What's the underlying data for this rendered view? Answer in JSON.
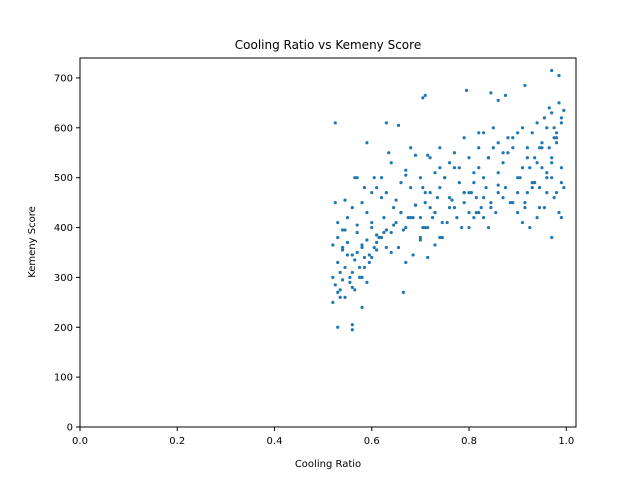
{
  "chart_data": {
    "type": "scatter",
    "title": "Cooling Ratio vs Kemeny Score",
    "xlabel": "Cooling Ratio",
    "ylabel": "Kemeny Score",
    "xlim": [
      0.0,
      1.02
    ],
    "ylim": [
      0,
      740
    ],
    "xticks": [
      0.0,
      0.2,
      0.4,
      0.6,
      0.8,
      1.0
    ],
    "xtick_labels": [
      "0.0",
      "0.2",
      "0.4",
      "0.6",
      "0.8",
      "1.0"
    ],
    "yticks": [
      0,
      100,
      200,
      300,
      400,
      500,
      600,
      700
    ],
    "ytick_labels": [
      "0",
      "100",
      "200",
      "300",
      "400",
      "500",
      "600",
      "700"
    ],
    "grid": false,
    "legend": "none",
    "marker_color": "#1f77b4",
    "series": [
      {
        "x": [
          0.52,
          0.525,
          0.53,
          0.53,
          0.535,
          0.54,
          0.54,
          0.545,
          0.55,
          0.555,
          0.56,
          0.56,
          0.565,
          0.57,
          0.575,
          0.58,
          0.58,
          0.585,
          0.59,
          0.595,
          0.52,
          0.53,
          0.54,
          0.55,
          0.56,
          0.57,
          0.58,
          0.59,
          0.6,
          0.61,
          0.52,
          0.535,
          0.545,
          0.555,
          0.565,
          0.575,
          0.585,
          0.595,
          0.605,
          0.615,
          0.53,
          0.54,
          0.55,
          0.56,
          0.57,
          0.58,
          0.59,
          0.6,
          0.61,
          0.62,
          0.525,
          0.545,
          0.565,
          0.585,
          0.605,
          0.625,
          0.645,
          0.665,
          0.685,
          0.705,
          0.6,
          0.61,
          0.62,
          0.63,
          0.64,
          0.65,
          0.66,
          0.67,
          0.68,
          0.69,
          0.6,
          0.615,
          0.63,
          0.645,
          0.66,
          0.675,
          0.69,
          0.705,
          0.72,
          0.735,
          0.62,
          0.63,
          0.64,
          0.65,
          0.66,
          0.67,
          0.68,
          0.69,
          0.7,
          0.71,
          0.61,
          0.625,
          0.64,
          0.655,
          0.67,
          0.685,
          0.7,
          0.715,
          0.73,
          0.745,
          0.7,
          0.71,
          0.72,
          0.73,
          0.74,
          0.75,
          0.76,
          0.77,
          0.78,
          0.79,
          0.7,
          0.715,
          0.73,
          0.745,
          0.76,
          0.775,
          0.79,
          0.805,
          0.82,
          0.835,
          0.72,
          0.73,
          0.74,
          0.75,
          0.76,
          0.77,
          0.78,
          0.79,
          0.8,
          0.81,
          0.71,
          0.725,
          0.74,
          0.755,
          0.77,
          0.785,
          0.8,
          0.815,
          0.83,
          0.845,
          0.8,
          0.81,
          0.82,
          0.83,
          0.84,
          0.85,
          0.86,
          0.87,
          0.88,
          0.89,
          0.8,
          0.815,
          0.83,
          0.845,
          0.86,
          0.875,
          0.89,
          0.905,
          0.92,
          0.935,
          0.82,
          0.83,
          0.84,
          0.85,
          0.86,
          0.87,
          0.88,
          0.89,
          0.9,
          0.91,
          0.81,
          0.825,
          0.84,
          0.855,
          0.87,
          0.885,
          0.9,
          0.915,
          0.93,
          0.945,
          0.9,
          0.91,
          0.92,
          0.93,
          0.94,
          0.95,
          0.96,
          0.97,
          0.98,
          0.99,
          0.9,
          0.915,
          0.93,
          0.945,
          0.96,
          0.975,
          0.99,
          0.95,
          0.96,
          0.97,
          0.92,
          0.93,
          0.94,
          0.95,
          0.96,
          0.97,
          0.98,
          0.99,
          0.965,
          0.975,
          0.91,
          0.925,
          0.94,
          0.955,
          0.97,
          0.985,
          0.995,
          0.98,
          0.99,
          0.97,
          0.525,
          0.53,
          0.56,
          0.56,
          0.58,
          0.665,
          0.705,
          0.71,
          0.715,
          0.63,
          0.655,
          0.795,
          0.82,
          0.845,
          0.86,
          0.875,
          0.915,
          0.97,
          0.985,
          0.995,
          0.965,
          0.955,
          0.985,
          0.975,
          0.99,
          0.98,
          0.945,
          0.935,
          0.925,
          0.86,
          0.79,
          0.765,
          0.74,
          0.68,
          0.67,
          0.635,
          0.59,
          0.57,
          0.545,
          0.535
        ],
        "y": [
          300,
          285,
          270,
          330,
          310,
          295,
          360,
          320,
          345,
          300,
          310,
          280,
          335,
          350,
          320,
          300,
          365,
          340,
          290,
          330,
          365,
          380,
          355,
          370,
          345,
          390,
          360,
          375,
          400,
          385,
          250,
          275,
          260,
          290,
          275,
          300,
          320,
          345,
          360,
          380,
          410,
          395,
          420,
          440,
          405,
          450,
          430,
          470,
          480,
          460,
          450,
          455,
          500,
          480,
          500,
          420,
          440,
          395,
          420,
          400,
          340,
          355,
          380,
          360,
          390,
          410,
          430,
          400,
          420,
          445,
          410,
          380,
          395,
          405,
          430,
          420,
          445,
          480,
          440,
          460,
          500,
          470,
          530,
          455,
          490,
          515,
          480,
          545,
          500,
          470,
          370,
          390,
          350,
          360,
          330,
          345,
          375,
          340,
          365,
          380,
          420,
          450,
          470,
          430,
          480,
          500,
          460,
          520,
          490,
          470,
          380,
          400,
          430,
          410,
          440,
          420,
          450,
          470,
          430,
          480,
          540,
          510,
          560,
          500,
          530,
          550,
          520,
          580,
          540,
          510,
          400,
          420,
          380,
          410,
          440,
          400,
          430,
          460,
          420,
          450,
          470,
          490,
          520,
          500,
          540,
          560,
          510,
          530,
          550,
          580,
          400,
          430,
          460,
          440,
          470,
          480,
          450,
          500,
          470,
          490,
          560,
          590,
          540,
          600,
          570,
          550,
          580,
          560,
          590,
          600,
          420,
          440,
          400,
          430,
          460,
          450,
          470,
          440,
          490,
          480,
          500,
          520,
          540,
          490,
          530,
          560,
          510,
          540,
          570,
          520,
          430,
          450,
          480,
          440,
          470,
          460,
          490,
          520,
          500,
          530,
          560,
          590,
          610,
          570,
          600,
          630,
          590,
          620,
          560,
          580,
          410,
          400,
          420,
          440,
          380,
          430,
          480,
          470,
          420,
          500,
          610,
          200,
          205,
          195,
          240,
          270,
          660,
          665,
          545,
          610,
          605,
          675,
          590,
          670,
          655,
          665,
          685,
          715,
          705,
          635,
          640,
          620,
          650,
          600,
          610,
          580,
          560,
          540,
          520,
          485,
          470,
          455,
          520,
          560,
          505,
          550,
          570,
          500,
          395,
          260
        ]
      }
    ]
  }
}
